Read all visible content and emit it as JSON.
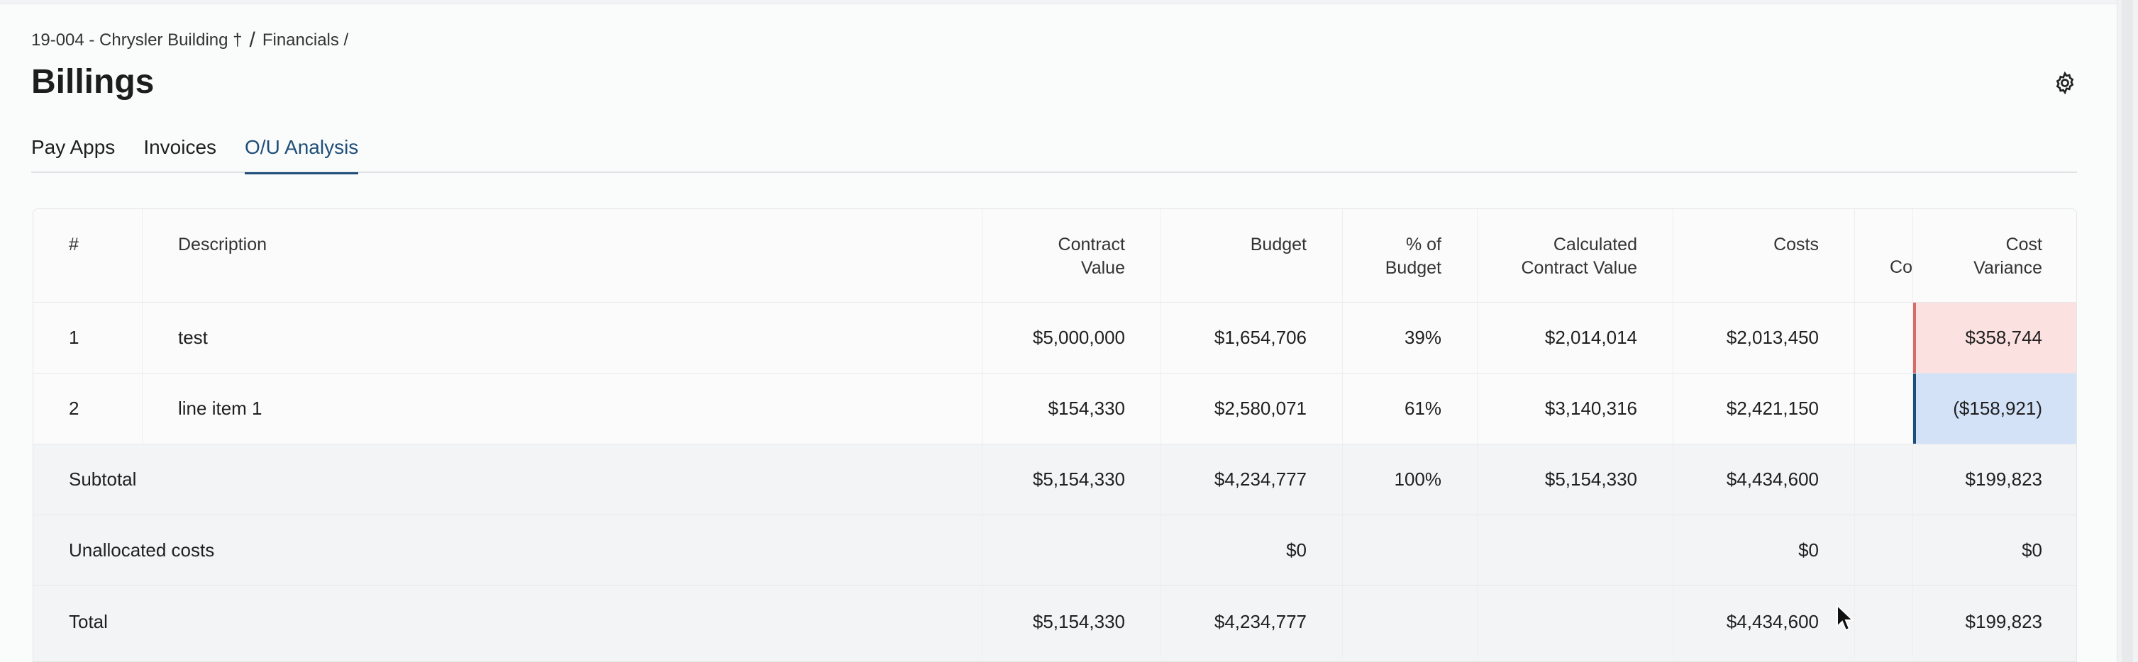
{
  "breadcrumb": {
    "project": "19-004 - Chrysler Building †",
    "sep1": "/",
    "section": "Financials /"
  },
  "page_title": "Billings",
  "icons": {
    "settings": "gear-icon",
    "cursor": "mouse-pointer-icon"
  },
  "tabs": [
    {
      "label": "Pay Apps",
      "active": false
    },
    {
      "label": "Invoices",
      "active": false
    },
    {
      "label": "O/U Analysis",
      "active": true
    }
  ],
  "table": {
    "headers": {
      "num": "#",
      "desc": "Description",
      "contract_value": "Contract\nValue",
      "budget": "Budget",
      "pct_budget": "% of\nBudget",
      "calc_contract": "Calculated\nContract Value",
      "costs": "Costs",
      "co": "Co",
      "cost_variance": "Cost\nVariance"
    },
    "rows": [
      {
        "num": "1",
        "desc": "test",
        "contract_value": "$5,000,000",
        "budget": "$1,654,706",
        "pct_budget": "39%",
        "calc_contract": "$2,014,014",
        "costs": "$2,013,450",
        "cost_variance": "$358,744"
      },
      {
        "num": "2",
        "desc": "line item 1",
        "contract_value": "$154,330",
        "budget": "$2,580,071",
        "pct_budget": "61%",
        "calc_contract": "$3,140,316",
        "costs": "$2,421,150",
        "cost_variance": "($158,921)"
      }
    ],
    "subtotal": {
      "label": "Subtotal",
      "contract_value": "$5,154,330",
      "budget": "$4,234,777",
      "pct_budget": "100%",
      "calc_contract": "$5,154,330",
      "costs": "$4,434,600",
      "cost_variance": "$199,823"
    },
    "unallocated": {
      "label": "Unallocated costs",
      "budget": "$0",
      "costs": "$0",
      "cost_variance": "$0"
    },
    "total": {
      "label": "Total",
      "contract_value": "$5,154,330",
      "budget": "$4,234,777",
      "costs": "$4,434,600",
      "cost_variance": "$199,823"
    }
  },
  "colors": {
    "accent": "#1f4e79",
    "variance_over_bg": "#fbe1e0",
    "variance_under_bg": "#d3e2f7"
  }
}
